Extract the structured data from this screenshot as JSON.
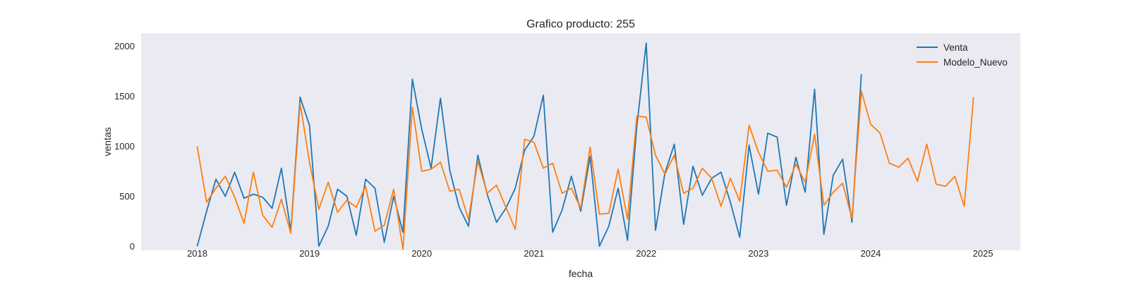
{
  "chart_data": {
    "type": "line",
    "title": "Grafico producto: 255",
    "xlabel": "fecha",
    "ylabel": "ventas",
    "x_ticks": [
      "2018",
      "2019",
      "2020",
      "2021",
      "2022",
      "2023",
      "2024",
      "2025"
    ],
    "y_ticks": [
      0,
      500,
      1000,
      1500,
      2000
    ],
    "xlim": [
      "2017-07",
      "2025-05"
    ],
    "ylim": [
      -40,
      2130
    ],
    "grid": false,
    "legend_position": "top-right",
    "x_start": "2018-01",
    "x_step": "1 month",
    "colors": {
      "background": "#eaeaf2",
      "Venta": "#1f77b4",
      "Modelo_Nuevo": "#ff7f0e"
    },
    "series": [
      {
        "name": "Venta",
        "values": [
          0,
          350,
          670,
          500,
          740,
          480,
          520,
          490,
          380,
          780,
          150,
          1490,
          1210,
          0,
          200,
          570,
          500,
          110,
          670,
          580,
          40,
          500,
          140,
          1670,
          1170,
          780,
          1480,
          760,
          390,
          200,
          910,
          520,
          240,
          380,
          580,
          960,
          1100,
          1510,
          140,
          360,
          700,
          350,
          900,
          0,
          200,
          580,
          60,
          1200,
          2030,
          160,
          730,
          1020,
          220,
          800,
          510,
          680,
          740,
          440,
          90,
          1010,
          520,
          1130,
          1090,
          410,
          890,
          540,
          1570,
          120,
          710,
          870,
          240,
          1720
        ]
      },
      {
        "name": "Modelo_Nuevo",
        "values": [
          1000,
          440,
          580,
          700,
          490,
          230,
          740,
          310,
          190,
          470,
          130,
          1430,
          840,
          370,
          640,
          340,
          460,
          390,
          600,
          150,
          210,
          570,
          -30,
          1390,
          750,
          770,
          840,
          550,
          570,
          270,
          850,
          530,
          610,
          390,
          170,
          1070,
          1040,
          780,
          830,
          530,
          580,
          380,
          990,
          320,
          330,
          770,
          270,
          1300,
          1290,
          910,
          720,
          910,
          530,
          580,
          780,
          680,
          400,
          680,
          450,
          1210,
          940,
          750,
          760,
          590,
          820,
          640,
          1120,
          410,
          540,
          630,
          280,
          1550,
          1220,
          1130,
          830,
          790,
          880,
          650,
          1020,
          620,
          600,
          700,
          400,
          1490
        ]
      }
    ]
  }
}
